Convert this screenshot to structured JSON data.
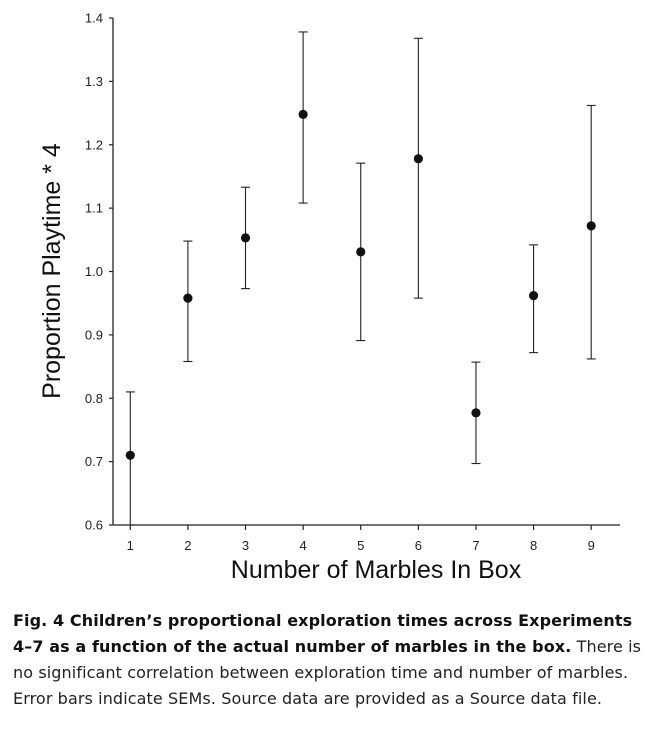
{
  "chart_data": {
    "type": "scatter",
    "xlabel": "Number of Marbles In Box",
    "ylabel": "Proportion Playtime * 4",
    "xlim": [
      0.7,
      9.5
    ],
    "ylim": [
      0.6,
      1.4
    ],
    "xticks": [
      "1",
      "2",
      "3",
      "4",
      "5",
      "6",
      "7",
      "8",
      "9"
    ],
    "yticks": [
      "0.6",
      "0.7",
      "0.8",
      "0.9",
      "1.0",
      "1.1",
      "1.2",
      "1.3",
      "1.4"
    ],
    "grid": false,
    "error_bars": "SEM",
    "points": [
      {
        "x": 1,
        "y": 0.71,
        "lo": 0.6,
        "hi": 0.81
      },
      {
        "x": 2,
        "y": 0.958,
        "lo": 0.858,
        "hi": 1.048
      },
      {
        "x": 3,
        "y": 1.053,
        "lo": 0.973,
        "hi": 1.133
      },
      {
        "x": 4,
        "y": 1.248,
        "lo": 1.108,
        "hi": 1.378
      },
      {
        "x": 5,
        "y": 1.031,
        "lo": 0.891,
        "hi": 1.171
      },
      {
        "x": 6,
        "y": 1.178,
        "lo": 0.958,
        "hi": 1.368
      },
      {
        "x": 7,
        "y": 0.777,
        "lo": 0.697,
        "hi": 0.857
      },
      {
        "x": 8,
        "y": 0.962,
        "lo": 0.872,
        "hi": 1.042
      },
      {
        "x": 9,
        "y": 1.072,
        "lo": 0.862,
        "hi": 1.262
      }
    ]
  },
  "caption": {
    "bold": "Fig. 4 Children’s proportional exploration times across Experiments 4–7 as a function of the actual number of marbles in the box.",
    "text": " There is no significant correlation between exploration time and number of marbles. Error bars indicate SEMs. Source data are provided as a Source data file."
  }
}
